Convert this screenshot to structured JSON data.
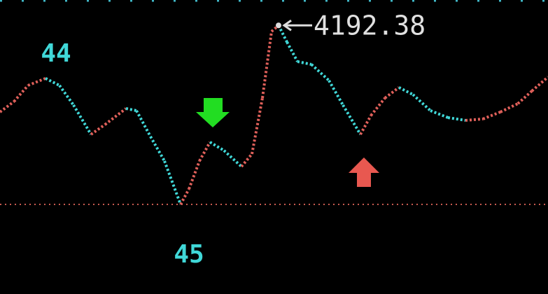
{
  "chart_data": {
    "type": "line",
    "x": [
      0,
      20,
      40,
      65,
      85,
      105,
      130,
      150,
      180,
      195,
      215,
      235,
      258,
      270,
      285,
      300,
      320,
      345,
      360,
      375,
      388,
      398,
      410,
      425,
      445,
      470,
      490,
      515,
      530,
      550,
      570,
      590,
      615,
      640,
      665,
      690,
      715,
      740,
      760,
      783
    ],
    "values": [
      4098.1,
      4109.5,
      4127.0,
      4134.7,
      4127.0,
      4105.7,
      4073.7,
      4084.4,
      4101.9,
      4099.6,
      4071.4,
      4044.8,
      3997.5,
      4014.3,
      4044.8,
      4065.3,
      4056.2,
      4038.7,
      4052.4,
      4113.3,
      4185.7,
      4192.38,
      4174.3,
      4153.0,
      4149.9,
      4132.4,
      4105.7,
      4073.7,
      4094.3,
      4113.3,
      4124.8,
      4117.1,
      4099.6,
      4092.0,
      4089.0,
      4090.5,
      4098.1,
      4107.2,
      4121.0,
      4136.2
    ],
    "xlim": [
      0,
      783
    ],
    "ylim": [
      3900,
      4220
    ],
    "up_color": "#e0605a",
    "down_color": "#40d8d8",
    "low_line_color": "#c85a50",
    "peak_label": "4192.38",
    "annotations": [
      "44",
      "45"
    ]
  }
}
